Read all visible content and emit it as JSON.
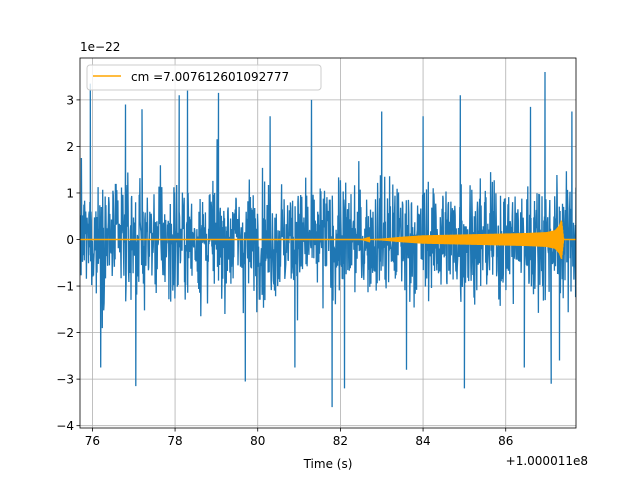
{
  "chart_data": {
    "type": "line",
    "xlabel": "Time (s)",
    "ylabel": "",
    "x_offset_label": "+1.000011e8",
    "y_scale_label": "1e−22",
    "xlim": [
      75.7,
      87.7
    ],
    "ylim": [
      -4.05,
      3.9
    ],
    "x_ticks": [
      76,
      78,
      80,
      82,
      84,
      86
    ],
    "y_ticks": [
      -4,
      -3,
      -2,
      -1,
      0,
      1,
      2,
      3
    ],
    "y_tick_labels": [
      "−4",
      "−3",
      "−2",
      "−1",
      "0",
      "1",
      "2",
      "3"
    ],
    "grid": true,
    "legend_position": "top-left",
    "series": [
      {
        "name": "",
        "color": "#1f77b4",
        "kind": "noise",
        "x_start": 75.7,
        "x_end": 87.7,
        "typical_envelope": [
          -1.5,
          1.5
        ],
        "peaks": [
          {
            "x": 75.95,
            "y": 3.35
          },
          {
            "x": 76.8,
            "y": 2.9
          },
          {
            "x": 77.2,
            "y": 2.8
          },
          {
            "x": 78.1,
            "y": 3.1
          },
          {
            "x": 78.3,
            "y": 3.2
          },
          {
            "x": 79.05,
            "y": 3.15
          },
          {
            "x": 80.3,
            "y": 2.65
          },
          {
            "x": 81.3,
            "y": 3.0
          },
          {
            "x": 83.0,
            "y": 2.75
          },
          {
            "x": 84.0,
            "y": 2.65
          },
          {
            "x": 84.9,
            "y": 3.1
          },
          {
            "x": 86.6,
            "y": 2.85
          },
          {
            "x": 86.95,
            "y": 3.6
          },
          {
            "x": 87.6,
            "y": 2.75
          }
        ],
        "troughs": [
          {
            "x": 76.2,
            "y": -2.75
          },
          {
            "x": 77.05,
            "y": -3.15
          },
          {
            "x": 79.7,
            "y": -3.05
          },
          {
            "x": 80.9,
            "y": -2.75
          },
          {
            "x": 81.8,
            "y": -3.6
          },
          {
            "x": 82.1,
            "y": -3.2
          },
          {
            "x": 83.6,
            "y": -2.8
          },
          {
            "x": 85.0,
            "y": -3.2
          },
          {
            "x": 86.45,
            "y": -2.75
          },
          {
            "x": 87.1,
            "y": -3.1
          },
          {
            "x": 87.3,
            "y": -2.6
          }
        ]
      },
      {
        "name": "cm =7.007612601092777",
        "color": "#ffa500",
        "kind": "chirp",
        "x": [
          75.7,
          82.5,
          83.0,
          83.5,
          84.0,
          84.5,
          85.0,
          85.5,
          86.0,
          86.5,
          87.0,
          87.2,
          87.3,
          87.35,
          87.4,
          87.7
        ],
        "envelope": [
          0.0,
          0.0,
          0.02,
          0.06,
          0.09,
          0.1,
          0.11,
          0.12,
          0.13,
          0.14,
          0.16,
          0.2,
          0.3,
          0.42,
          0.0,
          0.0
        ]
      }
    ]
  }
}
